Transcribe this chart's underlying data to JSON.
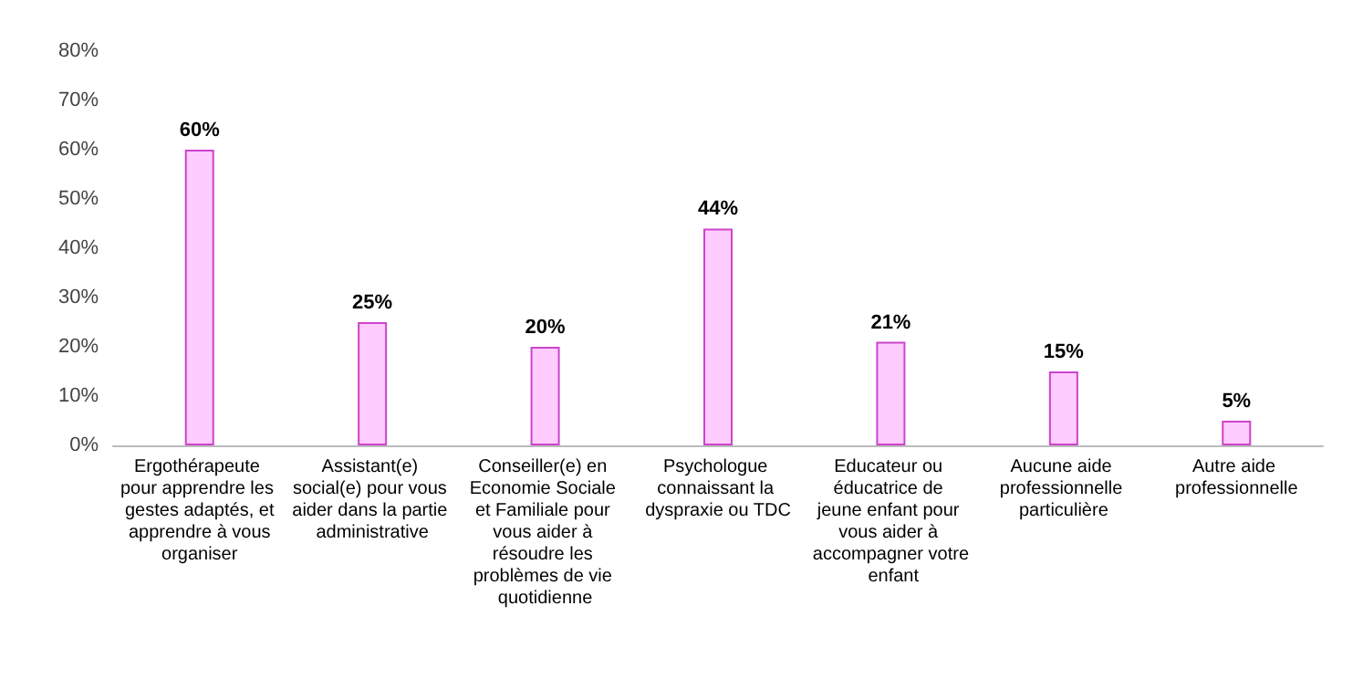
{
  "chart_data": {
    "type": "bar",
    "categories": [
      "Ergothérapeute pour apprendre les gestes adaptés, et apprendre à vous organiser",
      "Assistant(e) social(e) pour vous aider dans la partie administrative",
      "Conseiller(e) en Economie Sociale et Familiale pour vous aider à résoudre les problèmes de vie quotidienne",
      "Psychologue connaissant la dyspraxie ou TDC",
      "Educateur ou éducatrice de jeune enfant pour vous aider à accompagner votre enfant",
      "Aucune aide professionnelle particulière",
      "Autre aide professionnelle"
    ],
    "values": [
      60,
      25,
      20,
      44,
      21,
      15,
      5
    ],
    "value_labels": [
      "60%",
      "25%",
      "20%",
      "44%",
      "21%",
      "15%",
      "5%"
    ],
    "color": "#ffccff",
    "ylim": [
      0,
      80
    ],
    "yticks": [
      {
        "value": 0,
        "label": "0%"
      },
      {
        "value": 10,
        "label": "10%"
      },
      {
        "value": 20,
        "label": "20%"
      },
      {
        "value": 30,
        "label": "30%"
      },
      {
        "value": 40,
        "label": "40%"
      },
      {
        "value": 50,
        "label": "50%"
      },
      {
        "value": 60,
        "label": "60%"
      },
      {
        "value": 70,
        "label": "70%"
      },
      {
        "value": 80,
        "label": "80%"
      }
    ],
    "grid": false
  }
}
